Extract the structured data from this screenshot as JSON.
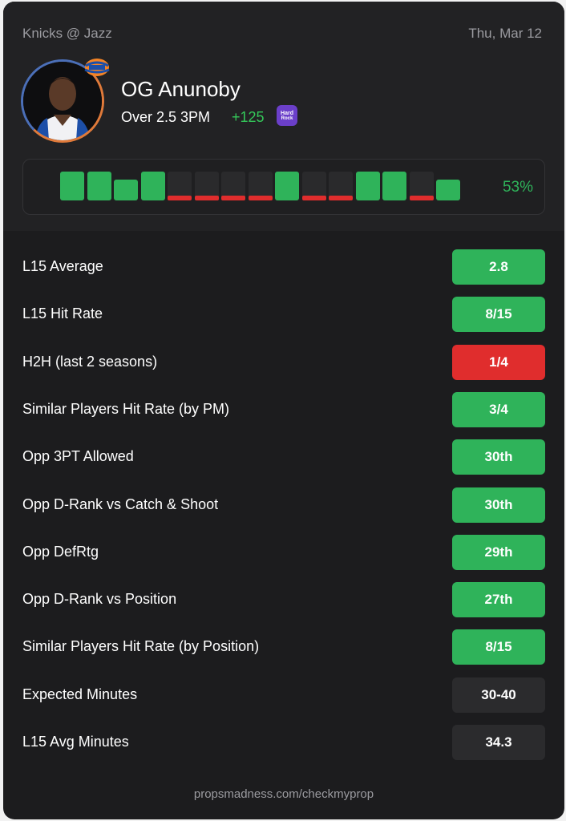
{
  "header": {
    "matchup": "Knicks @ Jazz",
    "date": "Thu, Mar 12",
    "player_name": "OG Anunoby",
    "prop_line": "Over 2.5 3PM",
    "odds": "+125",
    "book_logo_text": "Hard Rock BET",
    "colors": {
      "accent_green": "#34c759",
      "hit": "#2fb35a",
      "miss": "#e02d2d"
    }
  },
  "hit_history": {
    "games": [
      "hit",
      "hit",
      "hit",
      "hit",
      "miss",
      "miss",
      "miss",
      "miss",
      "hit",
      "miss",
      "miss",
      "hit",
      "hit",
      "miss",
      "hit"
    ],
    "hit_pct": "53%"
  },
  "stats": [
    {
      "label": "L15 Average",
      "value": "2.8",
      "status": "green"
    },
    {
      "label": "L15 Hit Rate",
      "value": "8/15",
      "status": "green"
    },
    {
      "label": "H2H (last 2 seasons)",
      "value": "1/4",
      "status": "red"
    },
    {
      "label": "Similar Players Hit Rate (by PM)",
      "value": "3/4",
      "status": "green"
    },
    {
      "label": "Opp 3PT Allowed",
      "value": "30th",
      "status": "green"
    },
    {
      "label": "Opp D-Rank vs Catch & Shoot",
      "value": "30th",
      "status": "green"
    },
    {
      "label": "Opp DefRtg",
      "value": "29th",
      "status": "green"
    },
    {
      "label": "Opp D-Rank vs Position",
      "value": "27th",
      "status": "green"
    },
    {
      "label": "Similar Players Hit Rate (by Position)",
      "value": "8/15",
      "status": "green"
    },
    {
      "label": "Expected Minutes",
      "value": "30-40",
      "status": "neutral"
    },
    {
      "label": "L15 Avg Minutes",
      "value": "34.3",
      "status": "neutral"
    }
  ],
  "footer": {
    "url": "propsmadness.com/checkmyprop"
  }
}
